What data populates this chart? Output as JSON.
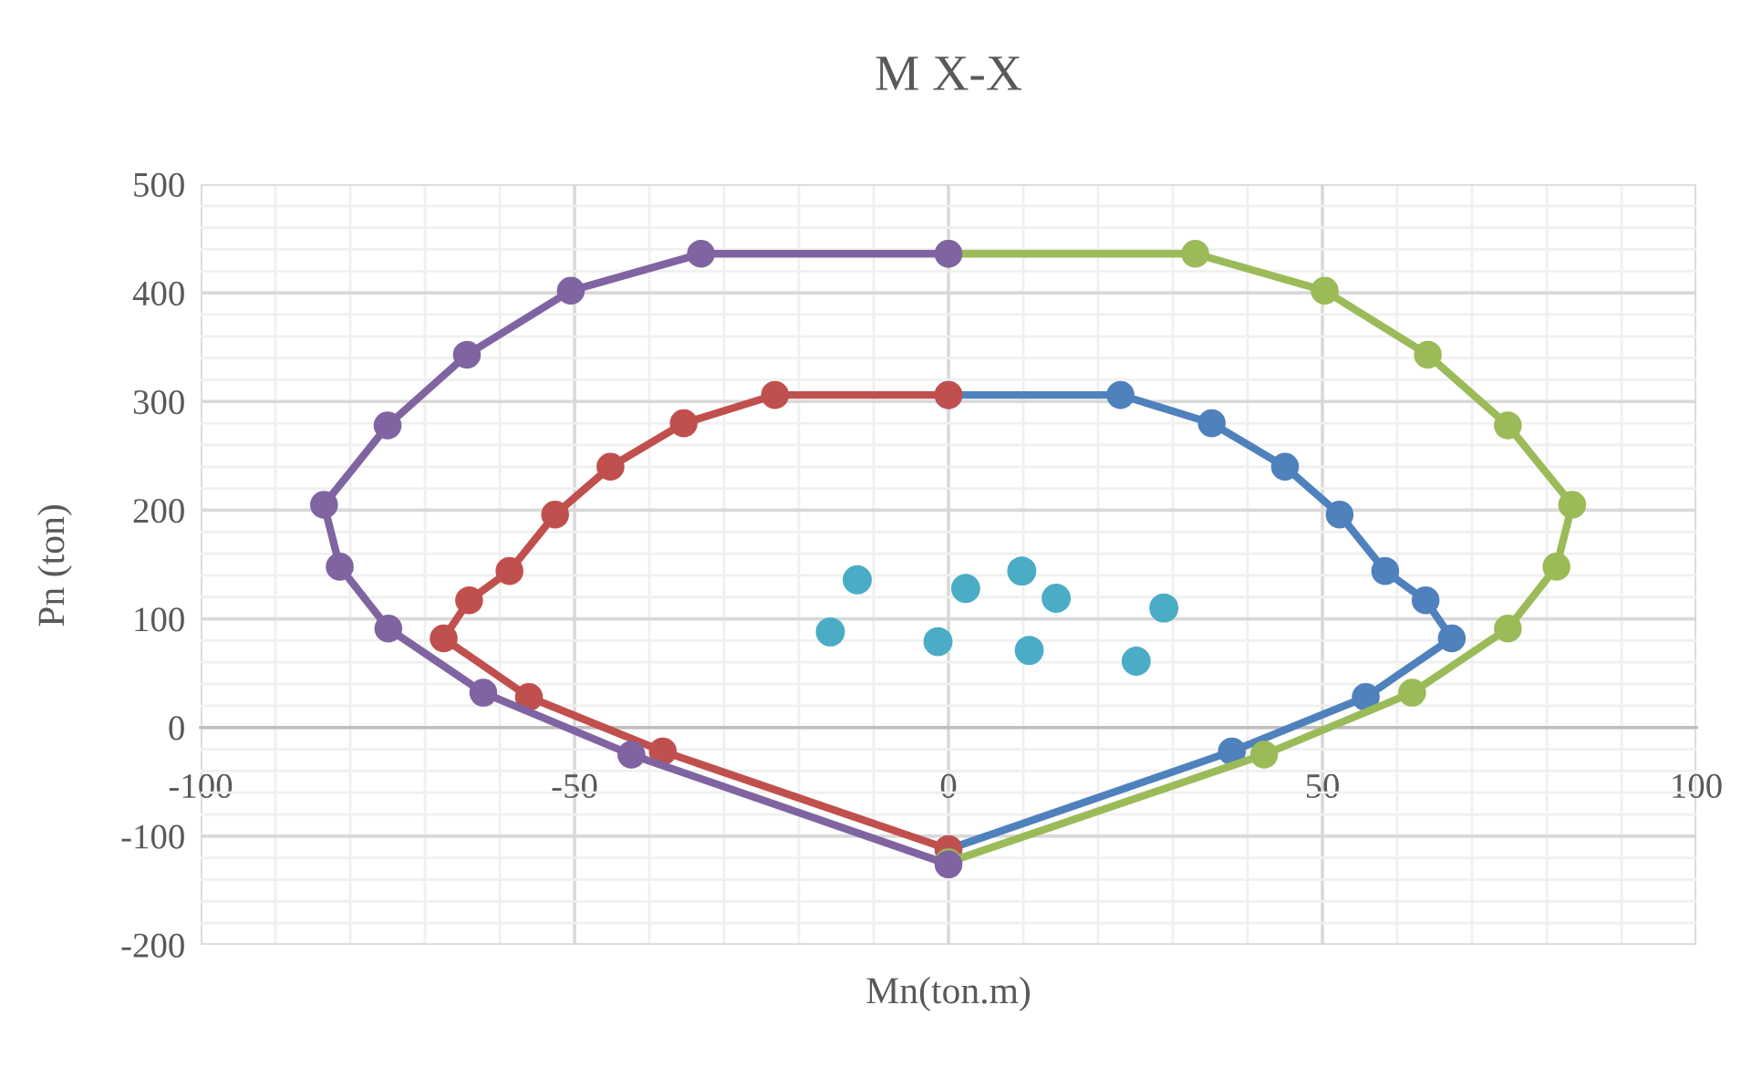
{
  "chart_data": {
    "type": "line",
    "title": "M X-X",
    "xlabel": "Mn(ton.m)",
    "ylabel": "Pn (ton)",
    "xlim": [
      -100,
      100
    ],
    "xticks": [
      -100,
      -50,
      0,
      50,
      100
    ],
    "ylim": [
      -200,
      500
    ],
    "yticks": [
      -200,
      -100,
      0,
      100,
      200,
      300,
      400,
      500
    ],
    "grid": true,
    "marker": "circle",
    "line_style": "solid",
    "series": [
      {
        "color": "#4f81bd",
        "x": [
          0,
          23.0,
          35.2,
          45.0,
          52.3,
          58.4,
          63.8,
          67.3,
          55.8,
          37.9,
          0
        ],
        "values": [
          306,
          306,
          280,
          240,
          196,
          144,
          117,
          82,
          28,
          -22,
          -112
        ]
      },
      {
        "color": "#c0504d",
        "x": [
          0,
          -23.2,
          -35.4,
          -45.2,
          -52.6,
          -58.7,
          -64.1,
          -67.5,
          -56.1,
          -38.2,
          0
        ],
        "values": [
          306,
          306,
          280,
          240,
          196,
          144,
          117,
          82,
          28,
          -22,
          -112
        ]
      },
      {
        "color": "#9bbb59",
        "x": [
          0,
          33.0,
          50.3,
          64.1,
          74.8,
          83.4,
          81.3,
          74.8,
          62.0,
          42.2,
          0
        ],
        "values": [
          436,
          436,
          402,
          343,
          278,
          205,
          148,
          91,
          32,
          -25,
          -124
        ]
      },
      {
        "color": "#8064a2",
        "x": [
          0,
          -33.1,
          -50.5,
          -64.4,
          -75.0,
          -83.5,
          -81.4,
          -74.9,
          -62.2,
          -42.4,
          0
        ],
        "values": [
          436,
          436,
          402,
          343,
          278,
          205,
          148,
          91,
          32,
          -25,
          -126
        ]
      },
      {
        "type": "scatter",
        "color": "#4bacc6",
        "x": [
          -15.8,
          -12.2,
          -1.4,
          2.3,
          9.8,
          14.4,
          28.8,
          10.8,
          25.1
        ],
        "values": [
          88,
          136,
          79,
          128,
          144,
          119,
          110,
          71,
          61
        ]
      }
    ]
  }
}
